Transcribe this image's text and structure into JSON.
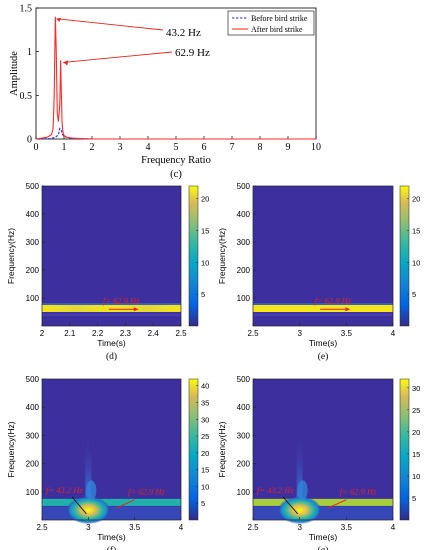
{
  "chart_data": [
    {
      "id": "c",
      "type": "line",
      "panel_label": "(c)",
      "xlabel": "Frequency Ratio",
      "ylabel": "Amplitude",
      "xlim": [
        0,
        10
      ],
      "ylim": [
        0,
        1.5
      ],
      "x_ticks": [
        "0",
        "1",
        "2",
        "3",
        "4",
        "5",
        "6",
        "7",
        "8",
        "9",
        "10"
      ],
      "y_ticks": [
        "0",
        "0.5",
        "1",
        "1.5"
      ],
      "legend_position": "top-right",
      "series": [
        {
          "name": "Before bird strike",
          "style": "dashed",
          "color": "#2b2bd6",
          "x": [
            0,
            0.5,
            0.7,
            0.8,
            0.85,
            0.9,
            0.95,
            1.0,
            1.2,
            1.5,
            2,
            10
          ],
          "y": [
            0,
            0.005,
            0.02,
            0.05,
            0.12,
            0.1,
            0.05,
            0.03,
            0.01,
            0.005,
            0,
            0
          ]
        },
        {
          "name": "After bird strike",
          "style": "solid",
          "color": "#ff2a2a",
          "x": [
            0,
            0.4,
            0.55,
            0.6,
            0.62,
            0.65,
            0.69,
            0.72,
            0.76,
            0.8,
            0.85,
            0.88,
            0.9,
            0.93,
            0.96,
            1.0,
            1.1,
            1.3,
            1.6,
            2,
            10
          ],
          "y": [
            0,
            0.02,
            0.05,
            0.1,
            0.2,
            0.5,
            1.4,
            1.05,
            0.3,
            0.2,
            0.4,
            0.9,
            0.6,
            0.2,
            0.08,
            0.04,
            0.02,
            0.01,
            0.005,
            0,
            0
          ]
        }
      ],
      "annotations": [
        {
          "text": "43.2 Hz",
          "x": 0.69,
          "y": 1.4
        },
        {
          "text": "62.9 Hz",
          "x": 0.9,
          "y": 0.9
        }
      ]
    },
    {
      "id": "d",
      "type": "heatmap",
      "panel_label": "(d)",
      "xlabel": "Time(s)",
      "ylabel": "Frequency(Hz)",
      "xlim": [
        2,
        2.5
      ],
      "ylim": [
        0,
        500
      ],
      "x_ticks": [
        "2",
        "2.1",
        "2.2",
        "2.3",
        "2.4",
        "2.5"
      ],
      "y_ticks": [
        "100",
        "200",
        "300",
        "400",
        "500"
      ],
      "colorbar_ticks": [
        "5",
        "10",
        "15",
        "20"
      ],
      "colorbar_max": 22,
      "annotation": "f= 62.9 Hz"
    },
    {
      "id": "e",
      "type": "heatmap",
      "panel_label": "(e)",
      "xlabel": "Time(s)",
      "ylabel": "Frequency(Hz)",
      "xlim": [
        2.5,
        4
      ],
      "ylim": [
        0,
        500
      ],
      "x_ticks": [
        "2.5",
        "3",
        "3.5",
        "4"
      ],
      "y_ticks": [
        "100",
        "200",
        "300",
        "400",
        "500"
      ],
      "colorbar_ticks": [
        "5",
        "10",
        "15",
        "20"
      ],
      "colorbar_max": 22,
      "annotation": "f= 62.9 Hz"
    },
    {
      "id": "f",
      "type": "heatmap",
      "panel_label": "(f)",
      "xlabel": "Time(s)",
      "ylabel": "Frequency(Hz)",
      "xlim": [
        2.5,
        4
      ],
      "ylim": [
        0,
        500
      ],
      "x_ticks": [
        "2.5",
        "3",
        "3.5",
        "4"
      ],
      "y_ticks": [
        "100",
        "200",
        "300",
        "400",
        "500"
      ],
      "colorbar_ticks": [
        "5",
        "10",
        "15",
        "20",
        "25",
        "30",
        "35",
        "40"
      ],
      "colorbar_max": 42,
      "annotations": [
        "f= 43.2 Hz",
        "f= 62.9 Hz"
      ]
    },
    {
      "id": "g",
      "type": "heatmap",
      "panel_label": "(g)",
      "xlabel": "Time(s)",
      "ylabel": "Frequency(Hz)",
      "xlim": [
        2.5,
        4
      ],
      "ylim": [
        0,
        500
      ],
      "x_ticks": [
        "2.5",
        "3",
        "3.5",
        "4"
      ],
      "y_ticks": [
        "100",
        "200",
        "300",
        "400",
        "500"
      ],
      "colorbar_ticks": [
        "5",
        "10",
        "15",
        "20",
        "25",
        "30"
      ],
      "colorbar_max": 32,
      "annotations": [
        "f= 43.2 Hz",
        "f= 62.9 Hz"
      ]
    }
  ],
  "colors": {
    "heatmap_background": "#3d2f9e",
    "band_yellow": "#f5e51b",
    "band_green": "#a7cf3c",
    "annotation_red": "#e8231f"
  }
}
